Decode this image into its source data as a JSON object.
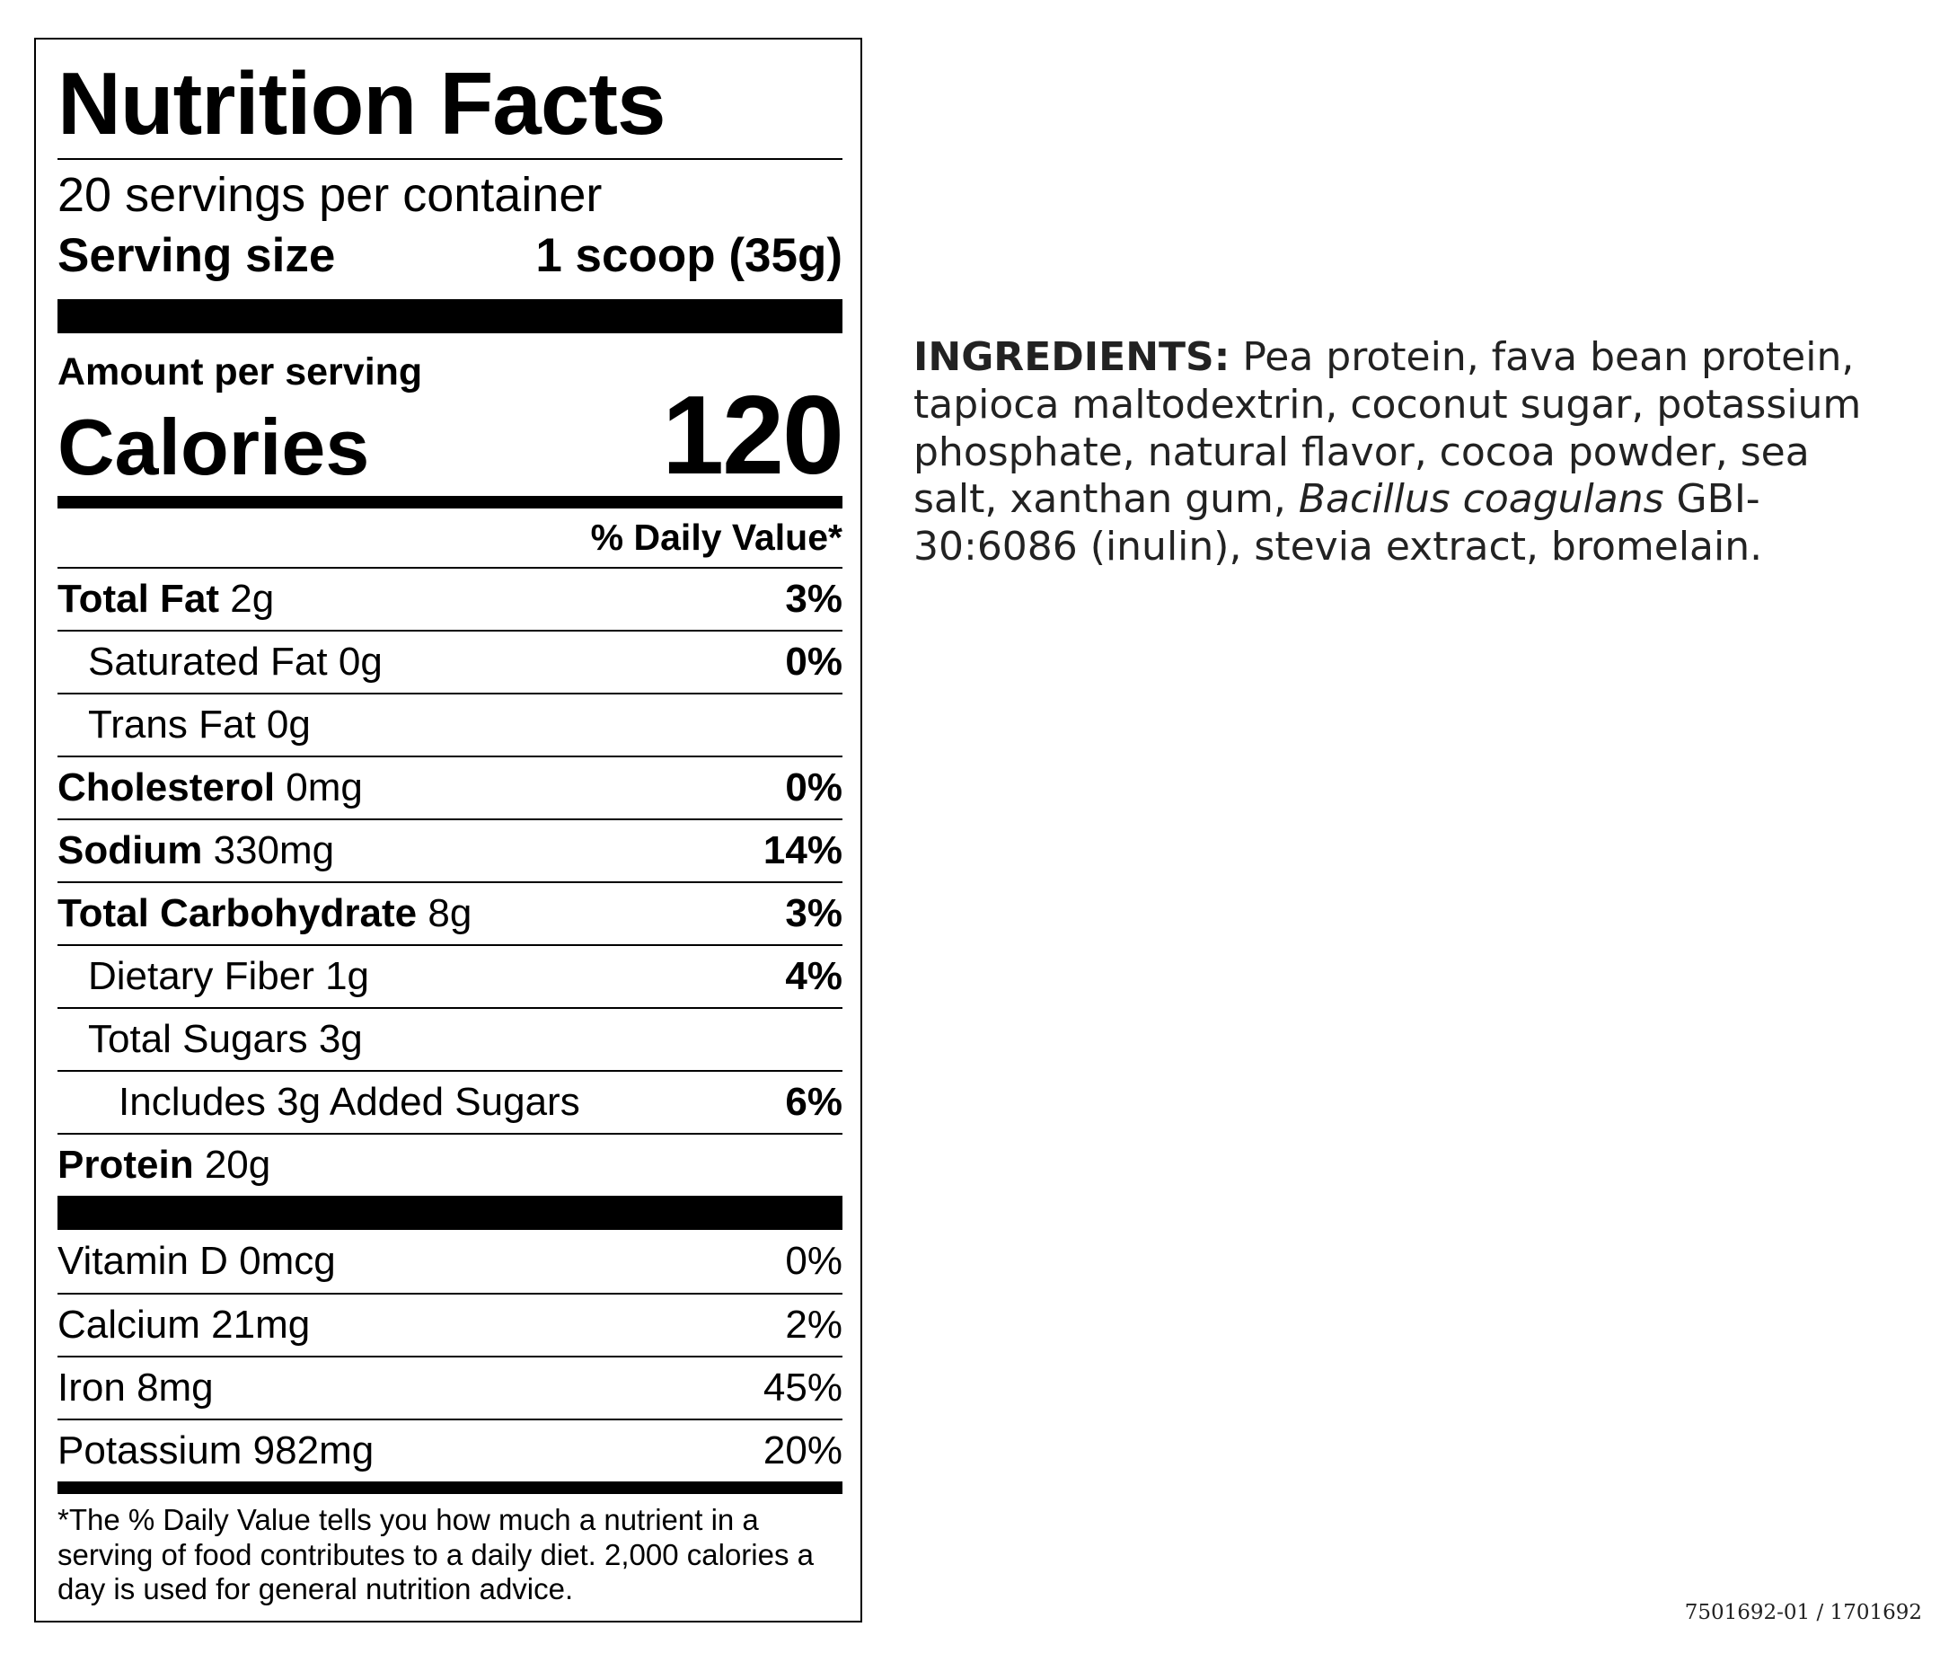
{
  "panel": {
    "title": "Nutrition Facts",
    "servings_per_container": "20 servings per container",
    "serving_size_label": "Serving size",
    "serving_size_value": "1 scoop (35g)",
    "amount_per_serving": "Amount per serving",
    "calories_label": "Calories",
    "calories_value": "120",
    "daily_value_header": "% Daily Value*",
    "nutrients": [
      {
        "name": "Total Fat",
        "amount": "2g",
        "dv": "3%"
      },
      {
        "name": "Saturated Fat",
        "amount": "0g",
        "dv": "0%"
      },
      {
        "name": "Trans Fat",
        "amount": "0g",
        "dv": ""
      },
      {
        "name": "Cholesterol",
        "amount": "0mg",
        "dv": "0%"
      },
      {
        "name": "Sodium",
        "amount": "330mg",
        "dv": "14%"
      },
      {
        "name": "Total Carbohydrate",
        "amount": "8g",
        "dv": "3%"
      },
      {
        "name": "Dietary Fiber",
        "amount": "1g",
        "dv": "4%"
      },
      {
        "name": "Total Sugars",
        "amount": "3g",
        "dv": ""
      },
      {
        "name": "Includes 3g Added Sugars",
        "amount": "",
        "dv": "6%"
      },
      {
        "name": "Protein",
        "amount": "20g",
        "dv": ""
      }
    ],
    "vitamins": [
      {
        "name": "Vitamin D",
        "amount": "0mcg",
        "dv": "0%"
      },
      {
        "name": "Calcium",
        "amount": "21mg",
        "dv": "2%"
      },
      {
        "name": "Iron",
        "amount": "8mg",
        "dv": "45%"
      },
      {
        "name": "Potassium",
        "amount": "982mg",
        "dv": "20%"
      }
    ],
    "footnote": "*The % Daily Value tells you how much a nutrient in a serving of food contributes to a daily diet. 2,000 calories a day is used for general nutrition advice."
  },
  "ingredients": {
    "heading": "INGREDIENTS:",
    "text_before_italic": " Pea protein, fava bean protein, tapioca maltodextrin, coconut sugar, potassium phosphate, natural flavor, cocoa powder, sea salt, xanthan gum, ",
    "italic": "Bacillus coagulans",
    "text_after_italic": " GBI-30:6086 (inulin), stevia extract, bromelain."
  },
  "product_code": "7501692-01 / 1701692"
}
